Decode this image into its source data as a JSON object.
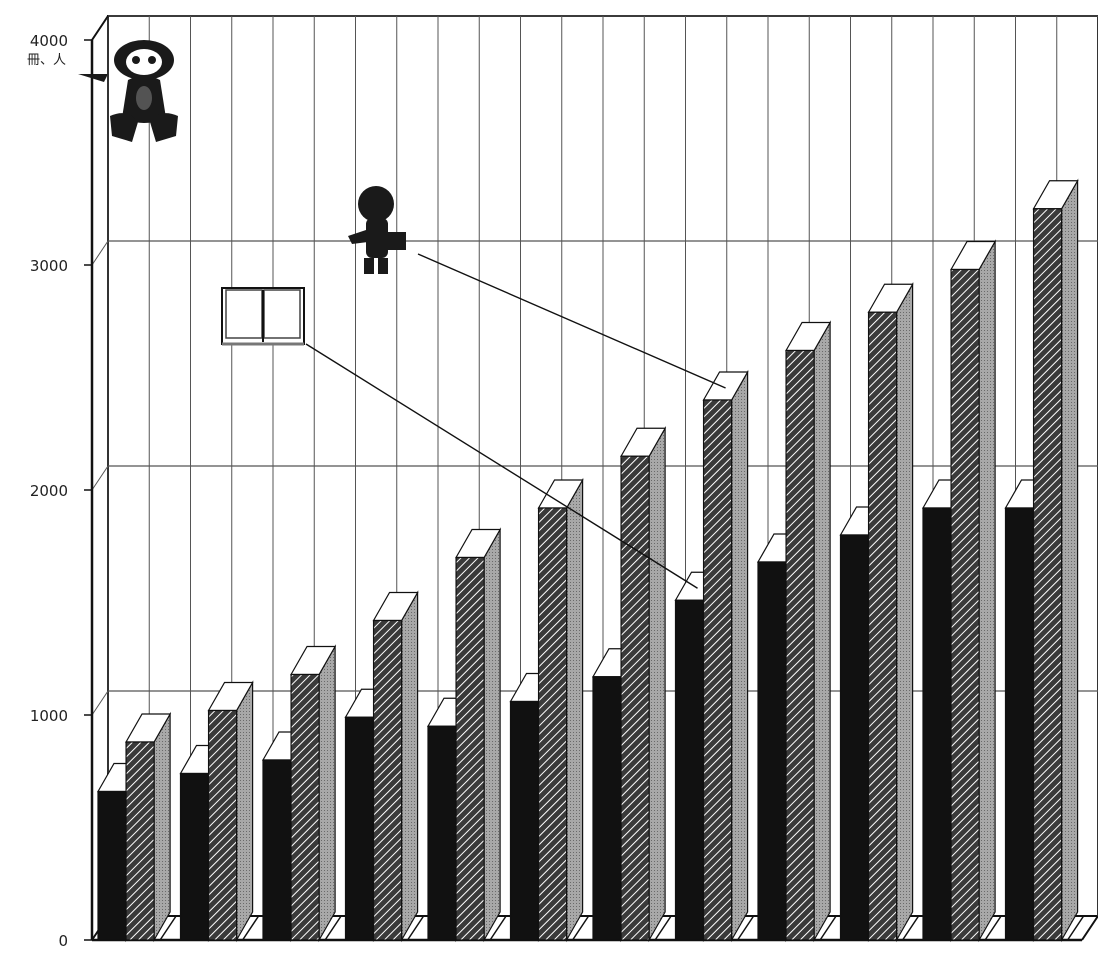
{
  "chart_data": {
    "type": "bar",
    "title": "",
    "xlabel": "",
    "ylabel": "",
    "unit_label": "冊、人",
    "ylim": [
      0,
      4000
    ],
    "yticks": [
      0,
      1000,
      2000,
      3000,
      4000
    ],
    "ytick_labels": [
      "0",
      "1000",
      "2000",
      "3000",
      "4000"
    ],
    "categories": [
      "",
      "",
      "",
      "",
      "",
      "",
      "",
      "",
      "",
      "",
      "",
      ""
    ],
    "series": [
      {
        "icon": "person-figure-icon",
        "values": [
          880,
          1020,
          1180,
          1420,
          1700,
          1920,
          2150,
          2400,
          2620,
          2790,
          2980,
          3250
        ]
      },
      {
        "icon": "open-book-icon",
        "values": [
          660,
          740,
          800,
          990,
          950,
          1060,
          1170,
          1510,
          1680,
          1800,
          1920,
          1920
        ]
      }
    ],
    "grid": true,
    "legend": "callout-icons",
    "colors": {
      "book_bar": "#111111",
      "person_bar": "#2a2a2a",
      "bar_side": "#9a9a9a",
      "bar_top": "#ffffff",
      "grid": "#555555",
      "axis": "#111111"
    }
  }
}
